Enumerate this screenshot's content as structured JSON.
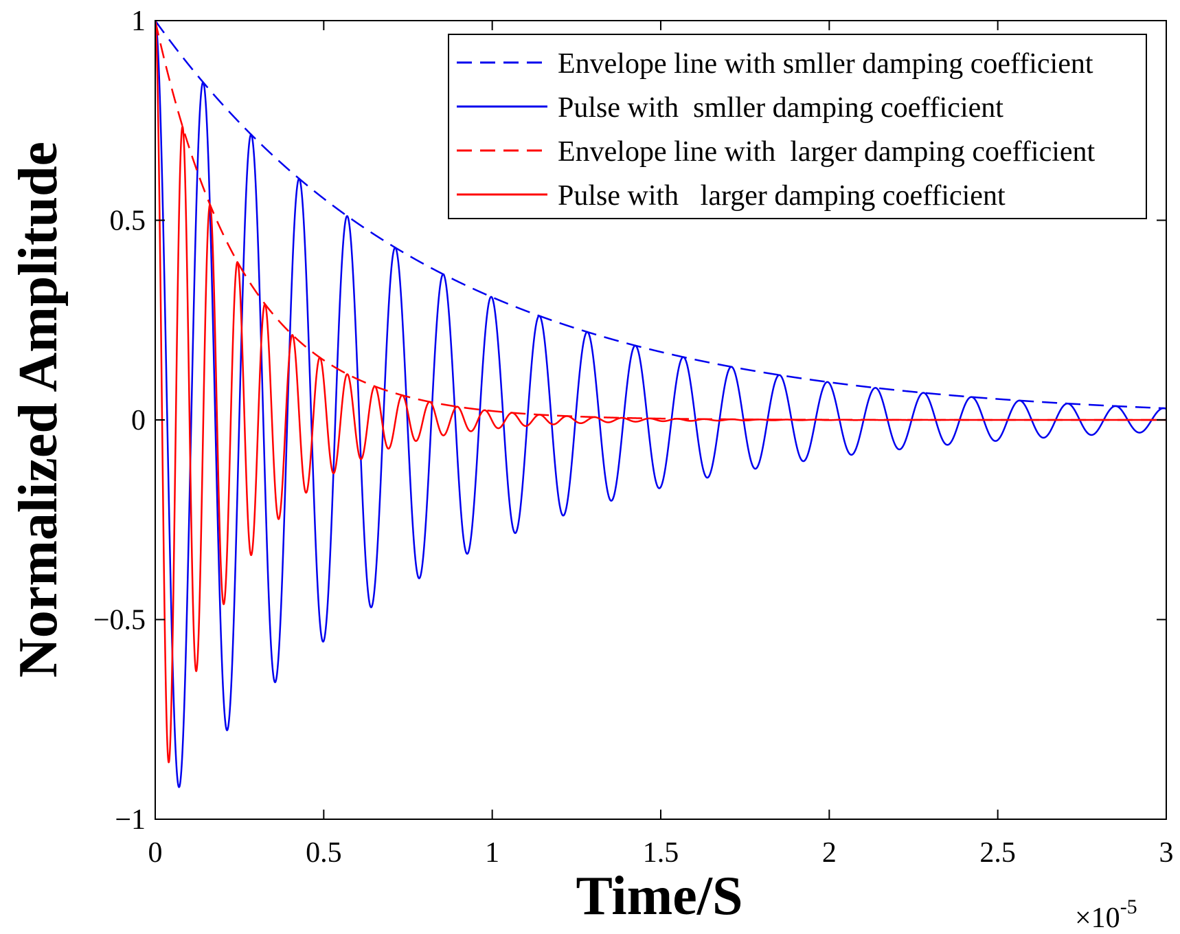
{
  "colors": {
    "small_damping": "#0000ee",
    "large_damping": "#ff0000",
    "axis": "#000000",
    "background": "#ffffff"
  },
  "chart_data": {
    "type": "line",
    "title": "",
    "xlabel": "Time/S",
    "ylabel": "Normalized Amplitude",
    "x_multiplier": "×10",
    "x_exponent": "-5",
    "xlim": [
      0,
      3
    ],
    "ylim": [
      -1,
      1
    ],
    "grid": false,
    "legend_position": "top-right",
    "x_ticks": [
      0,
      0.5,
      1,
      1.5,
      2,
      2.5,
      3
    ],
    "x_tick_labels": [
      "0",
      "0.5",
      "1",
      "1.5",
      "2",
      "2.5",
      "3"
    ],
    "y_ticks": [
      1,
      0.5,
      0,
      -0.5,
      -1
    ],
    "y_tick_labels": [
      "1",
      "0.5",
      "0",
      "−0.5",
      "−1"
    ],
    "series": [
      {
        "name": "Envelope line with smller damping coefficient",
        "style": "dashed",
        "color": "#0000ee",
        "kind": "envelope",
        "amplitude": 1,
        "decay_rate": 1.18,
        "x_start": 0,
        "x_end": 3
      },
      {
        "name": "Pulse with  smller damping coefficient",
        "style": "solid",
        "color": "#0000ee",
        "kind": "pulse",
        "amplitude": 1,
        "decay_rate": 1.18,
        "period": 0.1425,
        "x_start": 0,
        "x_end": 3,
        "sample_peaks": [
          {
            "x": 0.0,
            "y": 1.0
          },
          {
            "x": 0.07,
            "y": -0.91
          },
          {
            "x": 0.14,
            "y": 0.85
          },
          {
            "x": 0.21,
            "y": -0.77
          },
          {
            "x": 0.28,
            "y": 0.72
          },
          {
            "x": 0.42,
            "y": 0.61
          },
          {
            "x": 0.57,
            "y": 0.51
          },
          {
            "x": 0.71,
            "y": 0.43
          },
          {
            "x": 0.85,
            "y": 0.37
          },
          {
            "x": 0.99,
            "y": 0.31
          },
          {
            "x": 1.41,
            "y": 0.19
          },
          {
            "x": 1.98,
            "y": 0.1
          },
          {
            "x": 2.96,
            "y": 0.03
          }
        ]
      },
      {
        "name": "Envelope line with  larger damping coefficient",
        "style": "dashed",
        "color": "#ff0000",
        "kind": "envelope",
        "amplitude": 1,
        "decay_rate": 3.8,
        "x_start": 0,
        "x_end": 3
      },
      {
        "name": "Pulse with   larger damping coefficient",
        "style": "solid",
        "color": "#ff0000",
        "kind": "pulse",
        "amplitude": 1,
        "decay_rate": 3.8,
        "period": 0.0815,
        "x_start": 0,
        "x_end": 3,
        "sample_peaks": [
          {
            "x": 0.0,
            "y": 1.0
          },
          {
            "x": 0.04,
            "y": -0.85
          },
          {
            "x": 0.08,
            "y": 0.72
          },
          {
            "x": 0.12,
            "y": -0.62
          },
          {
            "x": 0.16,
            "y": 0.53
          },
          {
            "x": 0.24,
            "y": 0.39
          },
          {
            "x": 0.33,
            "y": 0.28
          },
          {
            "x": 0.49,
            "y": 0.15
          },
          {
            "x": 0.65,
            "y": 0.08
          },
          {
            "x": 0.81,
            "y": 0.04
          },
          {
            "x": 1.14,
            "y": 0.01
          }
        ]
      }
    ]
  }
}
